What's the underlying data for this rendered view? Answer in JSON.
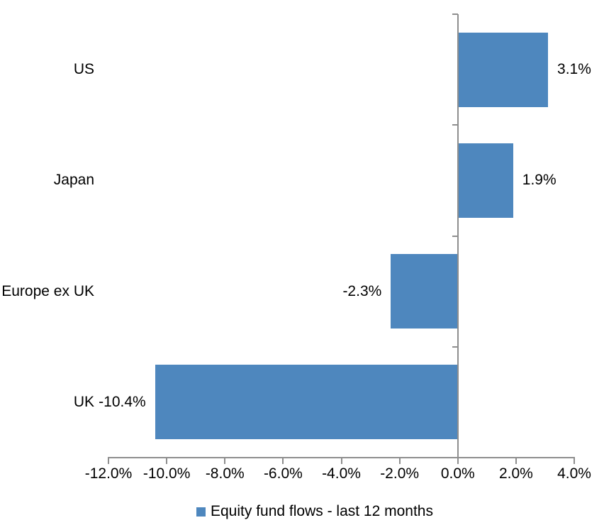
{
  "chart_data": {
    "type": "bar",
    "orientation": "horizontal",
    "title": "",
    "categories": [
      "US",
      "Japan",
      "Europe ex UK",
      "UK"
    ],
    "values": [
      3.1,
      1.9,
      -2.3,
      -10.4
    ],
    "value_labels": [
      "3.1%",
      "1.9%",
      "-2.3%",
      "-10.4%"
    ],
    "x_ticks": [
      -12,
      -10,
      -8,
      -6,
      -4,
      -2,
      0,
      2,
      4
    ],
    "x_tick_labels": [
      "-12.0%",
      "-10.0%",
      "-8.0%",
      "-6.0%",
      "-4.0%",
      "-2.0%",
      "0.0%",
      "2.0%",
      "4.0%"
    ],
    "xlim": [
      -12,
      4
    ],
    "grid": false,
    "legend_position": "bottom",
    "legend": {
      "label": "Equity fund flows - last 12 months"
    },
    "colors": {
      "bar": "#4e87be",
      "axis": "#8e8e8e",
      "text": "#000000",
      "background": "#ffffff"
    }
  }
}
